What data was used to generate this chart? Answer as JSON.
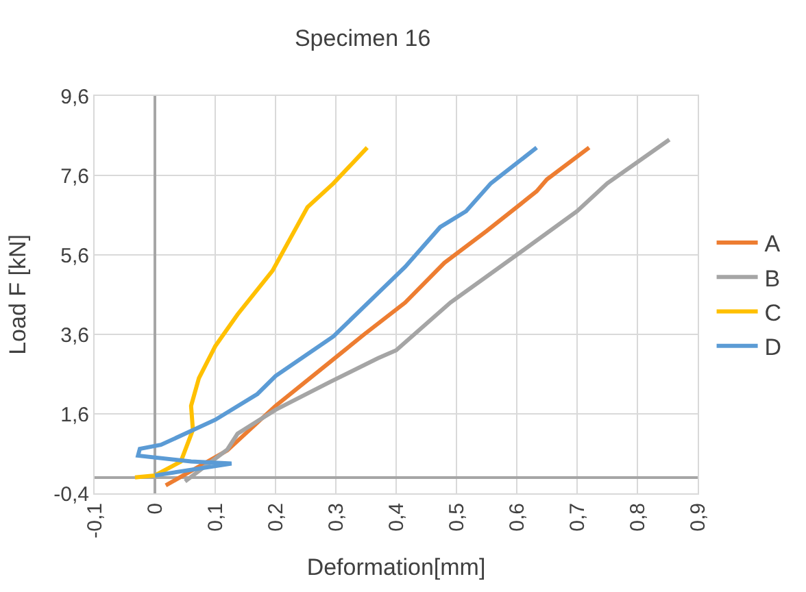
{
  "chart_data": {
    "type": "line",
    "title": "Specimen 16",
    "xlabel": "Deformation[mm]",
    "ylabel": "Load F [kN]",
    "xlim": [
      -0.1,
      0.9
    ],
    "ylim": [
      -0.4,
      9.6
    ],
    "xticks": [
      {
        "value": -0.1,
        "label": "-0,1"
      },
      0,
      {
        "value": 0.1,
        "label": "0,1"
      },
      {
        "value": 0.2,
        "label": "0,2"
      },
      {
        "value": 0.3,
        "label": "0,3"
      },
      {
        "value": 0.4,
        "label": "0,4"
      },
      {
        "value": 0.5,
        "label": "0,5"
      },
      {
        "value": 0.6,
        "label": "0,6"
      },
      {
        "value": 0.7,
        "label": "0,7"
      },
      {
        "value": 0.8,
        "label": "0,8"
      },
      {
        "value": 0.9,
        "label": "0,9"
      }
    ],
    "yticks": [
      {
        "value": -0.4,
        "label": "-0,4"
      },
      {
        "value": 1.6,
        "label": "1,6"
      },
      {
        "value": 3.6,
        "label": "3,6"
      },
      {
        "value": 5.6,
        "label": "5,6"
      },
      {
        "value": 7.6,
        "label": "7,6"
      },
      {
        "value": 9.6,
        "label": "9,6"
      }
    ],
    "grid": true,
    "legend": "right",
    "marker": "none",
    "line_style": "solid",
    "series": [
      {
        "name": "A",
        "color": "#ed7d31",
        "x": [
          0.018,
          0.12,
          0.2,
          0.29,
          0.347,
          0.415,
          0.48,
          0.55,
          0.633,
          0.65,
          0.72
        ],
        "values": [
          -0.2,
          0.68,
          1.8,
          2.9,
          3.6,
          4.4,
          5.4,
          6.2,
          7.2,
          7.5,
          8.3
        ]
      },
      {
        "name": "B",
        "color": "#a5a5a5",
        "x": [
          0.05,
          0.12,
          0.137,
          0.2,
          0.29,
          0.37,
          0.4,
          0.49,
          0.6,
          0.7,
          0.75,
          0.853
        ],
        "values": [
          -0.1,
          0.7,
          1.1,
          1.7,
          2.4,
          3.0,
          3.2,
          4.4,
          5.6,
          6.7,
          7.4,
          8.5
        ]
      },
      {
        "name": "C",
        "color": "#ffc000",
        "x": [
          -0.033,
          0,
          0.043,
          0.063,
          0.06,
          0.073,
          0.1,
          0.137,
          0.195,
          0.253,
          0.296,
          0.352
        ],
        "values": [
          0,
          0.05,
          0.4,
          1.2,
          1.8,
          2.5,
          3.3,
          4.1,
          5.2,
          6.8,
          7.4,
          8.3
        ]
      },
      {
        "name": "D",
        "color": "#5b9bd5",
        "x": [
          0,
          0.127,
          0.06,
          -0.028,
          -0.025,
          0.01,
          0.1,
          0.17,
          0.2,
          0.296,
          0.364,
          0.415,
          0.473,
          0.516,
          0.557,
          0.633
        ],
        "values": [
          0.05,
          0.35,
          0.4,
          0.55,
          0.72,
          0.82,
          1.45,
          2.1,
          2.55,
          3.55,
          4.55,
          5.3,
          6.3,
          6.7,
          7.4,
          8.3
        ]
      }
    ]
  }
}
